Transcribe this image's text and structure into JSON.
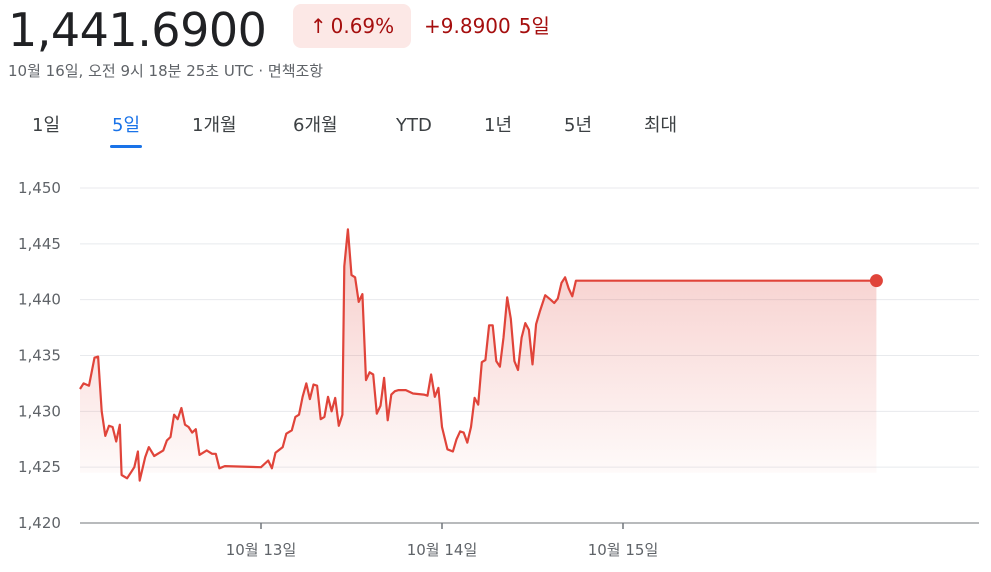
{
  "quote": {
    "price": "1,441.6900",
    "change_pct": "0.69%",
    "change_abs": "+9.8900",
    "period": "5일",
    "timestamp": "10월 16일, 오전 9시 18분 25초 UTC · 면책조항"
  },
  "colors": {
    "line": "#e0443a",
    "positive_text": "#a50e0e",
    "positive_bg": "#fce8e6",
    "active_tab": "#1a73e8",
    "grid": "#e8eaed"
  },
  "tabs": [
    {
      "label": "1일",
      "active": false
    },
    {
      "label": "5일",
      "active": true
    },
    {
      "label": "1개월",
      "active": false
    },
    {
      "label": "6개월",
      "active": false
    },
    {
      "label": "YTD",
      "active": false
    },
    {
      "label": "1년",
      "active": false
    },
    {
      "label": "5년",
      "active": false
    },
    {
      "label": "최대",
      "active": false
    }
  ],
  "chart_data": {
    "type": "area",
    "y_ticks": [
      "1,450",
      "1,445",
      "1,440",
      "1,435",
      "1,430",
      "1,425",
      "1,420"
    ],
    "ylim": [
      1420,
      1450
    ],
    "x_ticks": [
      {
        "label": "10월 13일",
        "x": 1.0
      },
      {
        "label": "10월 14일",
        "x": 2.0
      },
      {
        "label": "10월 15일",
        "x": 3.0
      }
    ],
    "xlim": [
      0,
      5
    ],
    "grid": true,
    "series": [
      {
        "values": [
          [
            0.0,
            1432.0
          ],
          [
            0.02,
            1432.5
          ],
          [
            0.05,
            1432.3
          ],
          [
            0.08,
            1434.8
          ],
          [
            0.1,
            1434.9
          ],
          [
            0.12,
            1430.0
          ],
          [
            0.14,
            1427.8
          ],
          [
            0.16,
            1428.7
          ],
          [
            0.18,
            1428.6
          ],
          [
            0.2,
            1427.3
          ],
          [
            0.22,
            1428.8
          ],
          [
            0.23,
            1424.3
          ],
          [
            0.26,
            1424.0
          ],
          [
            0.28,
            1424.5
          ],
          [
            0.3,
            1425.0
          ],
          [
            0.32,
            1426.4
          ],
          [
            0.33,
            1423.8
          ],
          [
            0.36,
            1425.9
          ],
          [
            0.38,
            1426.8
          ],
          [
            0.41,
            1426.0
          ],
          [
            0.44,
            1426.3
          ],
          [
            0.46,
            1426.5
          ],
          [
            0.48,
            1427.4
          ],
          [
            0.5,
            1427.7
          ],
          [
            0.52,
            1429.7
          ],
          [
            0.54,
            1429.3
          ],
          [
            0.56,
            1430.3
          ],
          [
            0.58,
            1428.8
          ],
          [
            0.6,
            1428.6
          ],
          [
            0.62,
            1428.1
          ],
          [
            0.64,
            1428.4
          ],
          [
            0.66,
            1426.1
          ],
          [
            0.7,
            1426.5
          ],
          [
            0.73,
            1426.2
          ],
          [
            0.75,
            1426.2
          ],
          [
            0.77,
            1424.9
          ],
          [
            0.8,
            1425.1
          ],
          [
            1.0,
            1425.0
          ],
          [
            1.04,
            1425.6
          ],
          [
            1.06,
            1424.9
          ],
          [
            1.08,
            1426.3
          ],
          [
            1.12,
            1426.8
          ],
          [
            1.14,
            1428.0
          ],
          [
            1.17,
            1428.3
          ],
          [
            1.19,
            1429.5
          ],
          [
            1.21,
            1429.7
          ],
          [
            1.23,
            1431.3
          ],
          [
            1.25,
            1432.5
          ],
          [
            1.27,
            1431.1
          ],
          [
            1.29,
            1432.4
          ],
          [
            1.31,
            1432.3
          ],
          [
            1.33,
            1429.3
          ],
          [
            1.35,
            1429.5
          ],
          [
            1.37,
            1431.3
          ],
          [
            1.39,
            1430.0
          ],
          [
            1.41,
            1431.2
          ],
          [
            1.43,
            1428.7
          ],
          [
            1.45,
            1429.7
          ],
          [
            1.46,
            1443.0
          ],
          [
            1.48,
            1446.3
          ],
          [
            1.5,
            1442.2
          ],
          [
            1.52,
            1442.0
          ],
          [
            1.54,
            1439.8
          ],
          [
            1.56,
            1440.5
          ],
          [
            1.58,
            1432.8
          ],
          [
            1.6,
            1433.5
          ],
          [
            1.62,
            1433.3
          ],
          [
            1.64,
            1429.8
          ],
          [
            1.66,
            1430.5
          ],
          [
            1.68,
            1433.0
          ],
          [
            1.7,
            1429.2
          ],
          [
            1.72,
            1431.5
          ],
          [
            1.74,
            1431.8
          ],
          [
            1.76,
            1431.9
          ],
          [
            1.8,
            1431.9
          ],
          [
            1.84,
            1431.6
          ],
          [
            1.9,
            1431.5
          ],
          [
            1.92,
            1431.4
          ],
          [
            1.94,
            1433.3
          ],
          [
            1.96,
            1431.3
          ],
          [
            1.98,
            1432.1
          ],
          [
            2.0,
            1428.6
          ],
          [
            2.03,
            1426.6
          ],
          [
            2.06,
            1426.4
          ],
          [
            2.08,
            1427.5
          ],
          [
            2.1,
            1428.2
          ],
          [
            2.12,
            1428.1
          ],
          [
            2.14,
            1427.2
          ],
          [
            2.16,
            1428.6
          ],
          [
            2.18,
            1431.2
          ],
          [
            2.2,
            1430.6
          ],
          [
            2.22,
            1434.4
          ],
          [
            2.24,
            1434.6
          ],
          [
            2.26,
            1437.7
          ],
          [
            2.28,
            1437.7
          ],
          [
            2.3,
            1434.5
          ],
          [
            2.32,
            1434.0
          ],
          [
            2.34,
            1436.6
          ],
          [
            2.36,
            1440.2
          ],
          [
            2.38,
            1438.3
          ],
          [
            2.4,
            1434.5
          ],
          [
            2.42,
            1433.7
          ],
          [
            2.44,
            1436.6
          ],
          [
            2.46,
            1437.9
          ],
          [
            2.48,
            1437.3
          ],
          [
            2.5,
            1434.2
          ],
          [
            2.52,
            1437.8
          ],
          [
            2.54,
            1438.9
          ],
          [
            2.57,
            1440.4
          ],
          [
            2.6,
            1440.0
          ],
          [
            2.62,
            1439.7
          ],
          [
            2.64,
            1440.1
          ],
          [
            2.66,
            1441.5
          ],
          [
            2.68,
            1442.0
          ],
          [
            2.7,
            1441.0
          ],
          [
            2.72,
            1440.3
          ],
          [
            2.74,
            1441.7
          ],
          [
            4.4,
            1441.7
          ]
        ]
      }
    ]
  }
}
